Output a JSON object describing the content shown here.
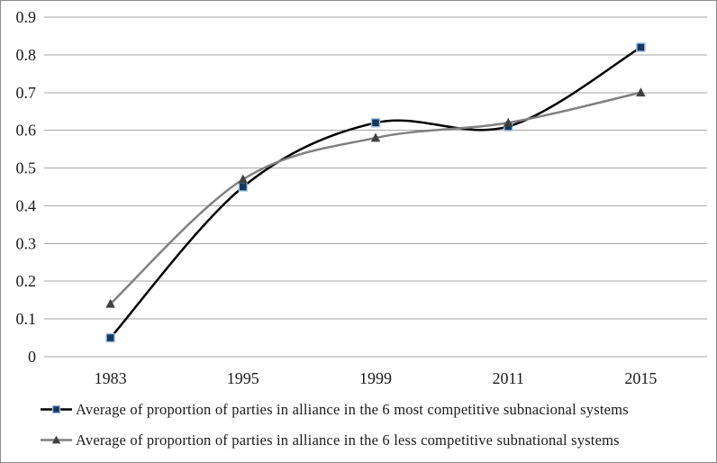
{
  "chart_data": {
    "type": "line",
    "smooth": true,
    "title": "",
    "xlabel": "",
    "ylabel": "",
    "categories": [
      "1983",
      "1995",
      "1999",
      "2011",
      "2015"
    ],
    "series": [
      {
        "name": "Average of proportion of parties in alliance in the 6 most competitive subnacional systems",
        "values": [
          0.05,
          0.45,
          0.62,
          0.61,
          0.82
        ],
        "line_color": "#000000",
        "marker": "square",
        "marker_fill": "#17375E",
        "marker_stroke": "#9DC3E6"
      },
      {
        "name": "Average of proportion of parties in alliance in the 6 less competitive subnational systems",
        "values": [
          0.14,
          0.47,
          0.58,
          0.62,
          0.7
        ],
        "line_color": "#808080",
        "marker": "triangle",
        "marker_fill": "#404040",
        "marker_stroke": "#404040"
      }
    ],
    "ylim": [
      0,
      0.9
    ],
    "ytick_step": 0.1,
    "ytick_labels": [
      "0",
      "0.1",
      "0.2",
      "0.3",
      "0.4",
      "0.5",
      "0.6",
      "0.7",
      "0.8",
      "0.9"
    ],
    "grid": true,
    "grid_color": "#A6A6A6",
    "axis_text_color": "#1a1a1a",
    "legend_position": "bottom-left"
  }
}
